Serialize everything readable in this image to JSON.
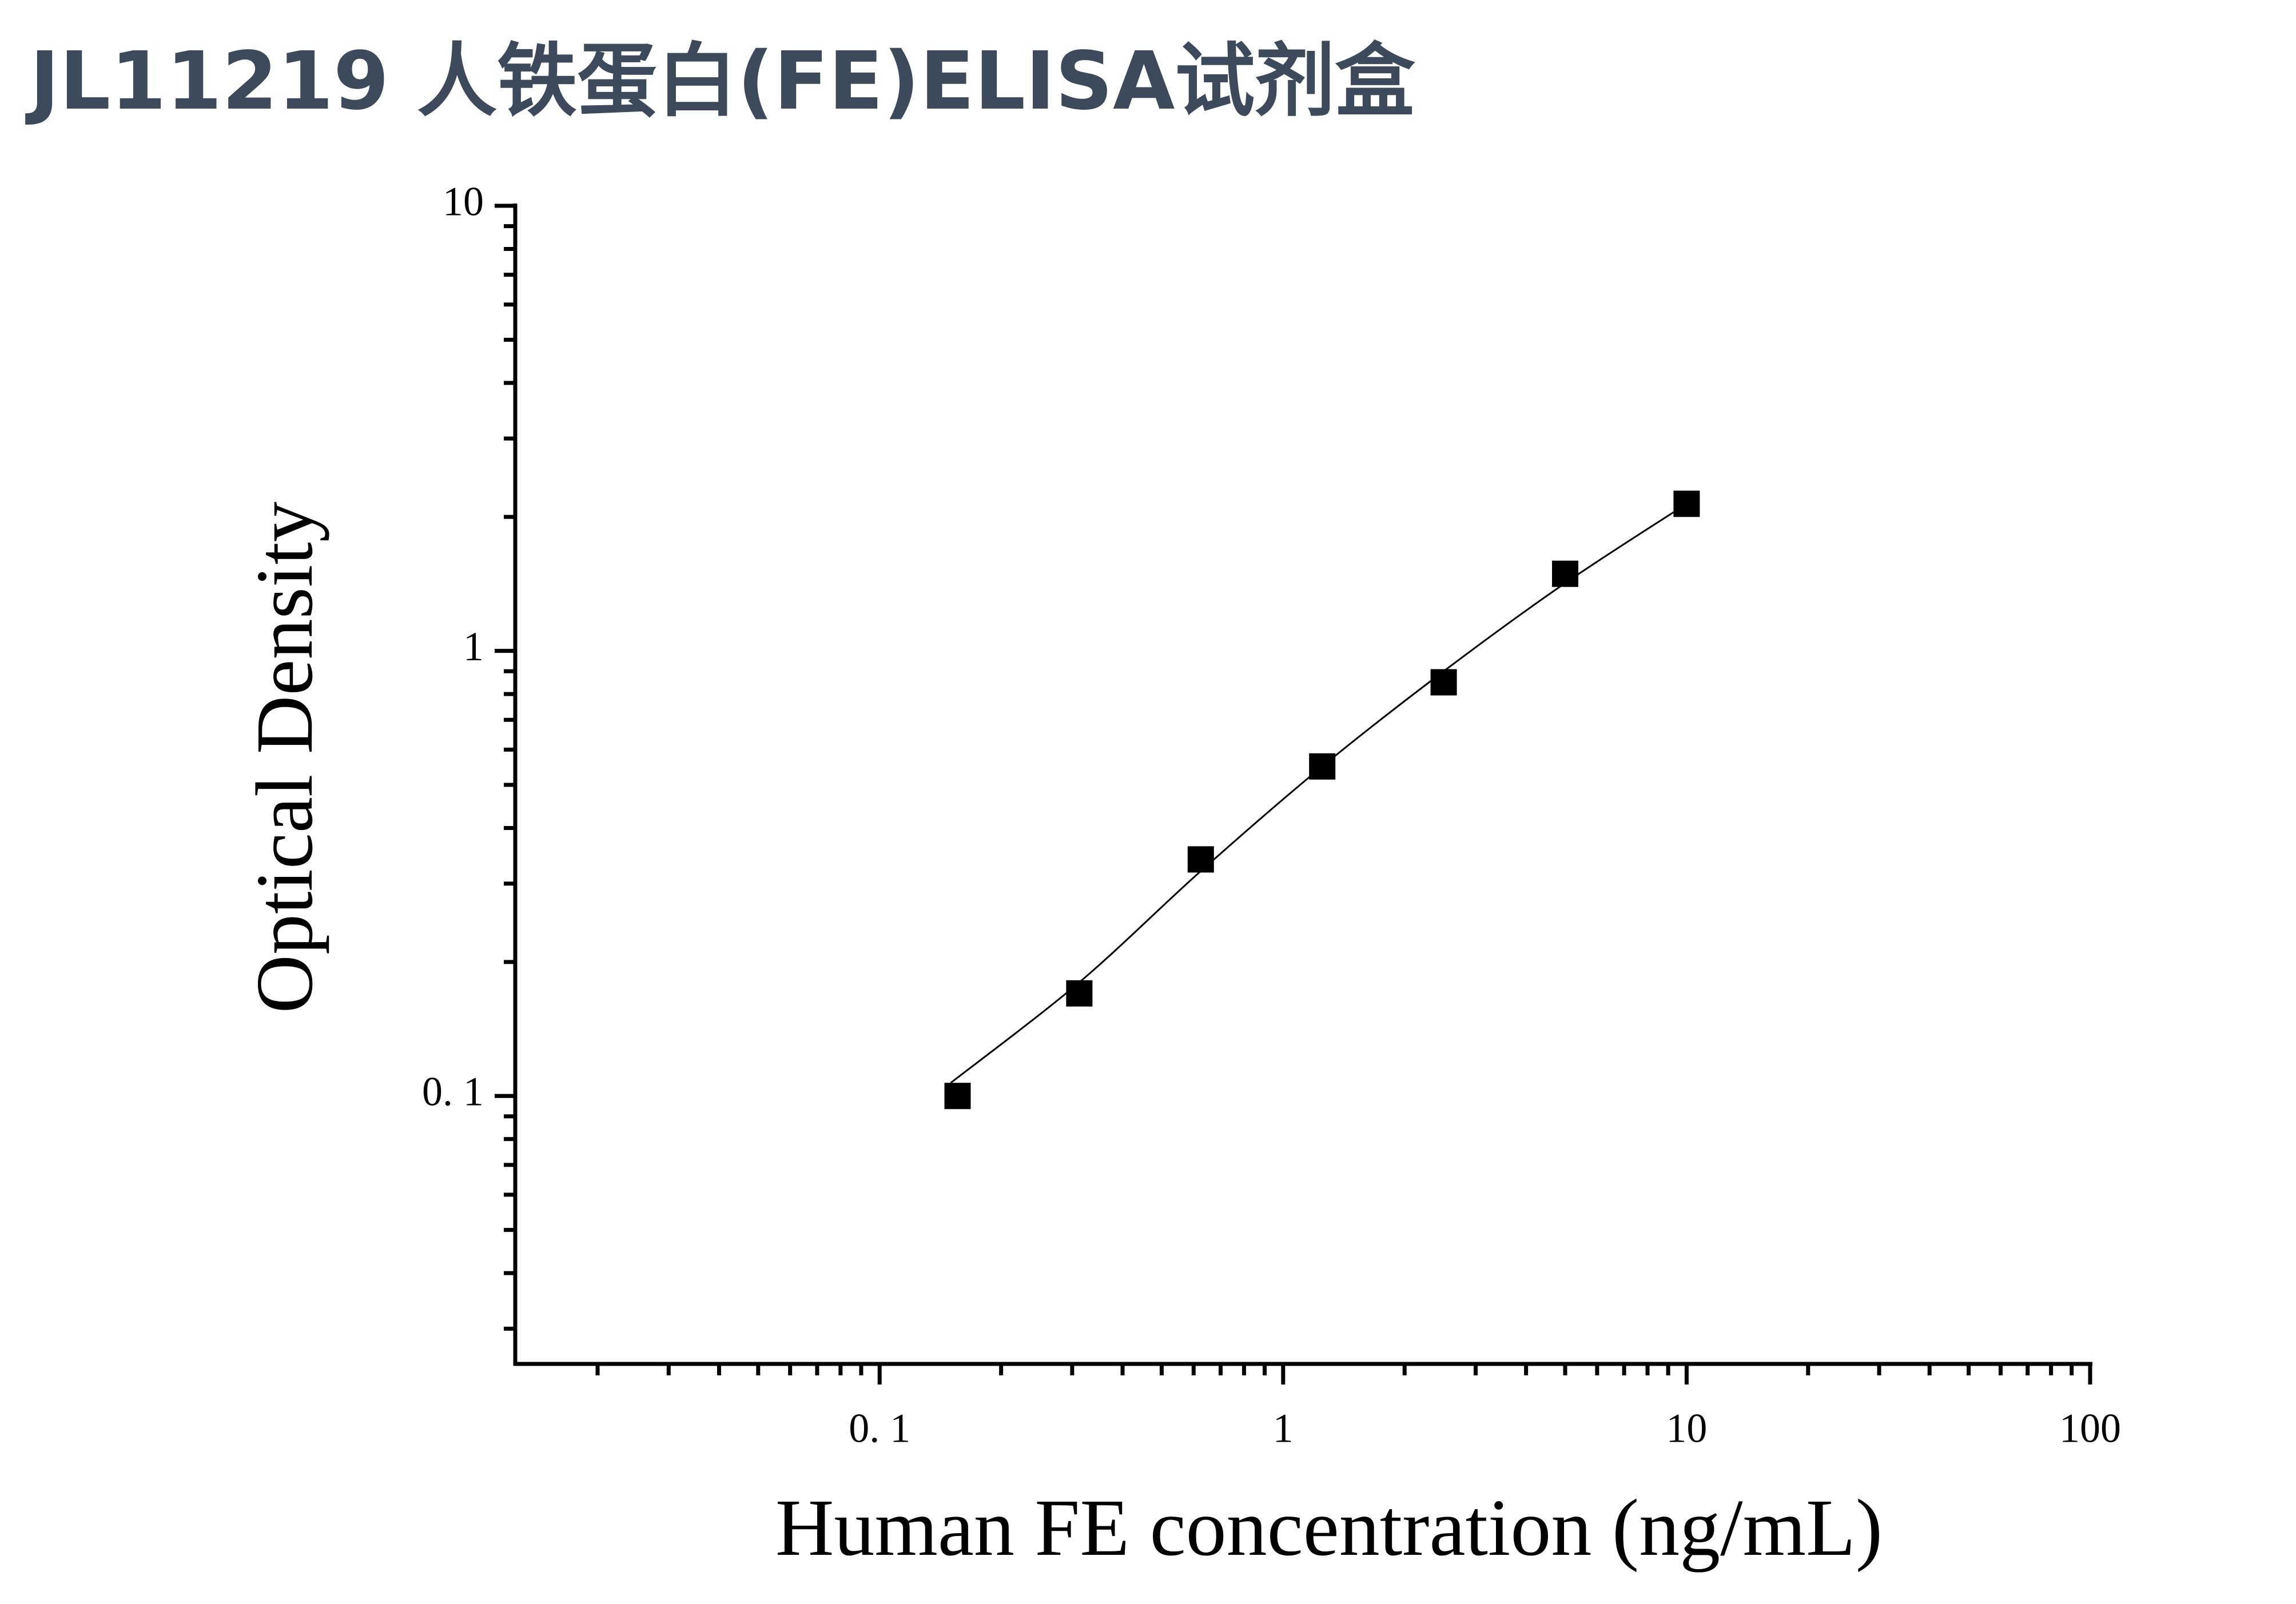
{
  "chart_data": {
    "type": "scatter",
    "title": "JL11219 人铁蛋白(FE)ELISA试剂盒",
    "x_label": "Human FE concentration (ng/mL)",
    "y_label": "Optical Density",
    "x_scale": "log",
    "y_scale": "log",
    "x": [
      0.156,
      0.3125,
      0.625,
      1.25,
      2.5,
      5,
      10
    ],
    "series": [
      {
        "color": "#000000",
        "marker": "square",
        "values": [
          0.1,
          0.17,
          0.34,
          0.55,
          0.85,
          1.49,
          2.14
        ]
      }
    ],
    "curve": {
      "color": "#000000",
      "x": [
        0.15,
        0.3125,
        0.625,
        1.25,
        2.5,
        5,
        10
      ],
      "values": [
        0.107,
        0.18,
        0.32,
        0.55,
        0.9,
        1.42,
        2.14
      ]
    },
    "xlim": [
      0.0125,
      100
    ],
    "ylim": [
      0.025,
      10
    ],
    "xticks": [
      {
        "value": 0.1,
        "label": "0. 1"
      },
      1,
      10,
      100
    ],
    "yticks": [
      {
        "value": 0.1,
        "label": "0. 1"
      },
      1,
      10
    ],
    "xminorticks": [
      0.02,
      0.03,
      0.04,
      0.05,
      0.06,
      0.07,
      0.08,
      0.09,
      0.2,
      0.3,
      0.4,
      0.5,
      0.6,
      0.7,
      0.8,
      0.9,
      2,
      3,
      4,
      5,
      6,
      7,
      8,
      9,
      20,
      30,
      40,
      50,
      60,
      70,
      80,
      90
    ],
    "yminorticks": [
      0.03,
      0.04,
      0.05,
      0.06,
      0.07,
      0.08,
      0.09,
      0.2,
      0.3,
      0.4,
      0.5,
      0.6,
      0.7,
      0.8,
      0.9,
      2,
      3,
      4,
      5,
      6,
      7,
      8,
      9
    ],
    "grid": false
  }
}
